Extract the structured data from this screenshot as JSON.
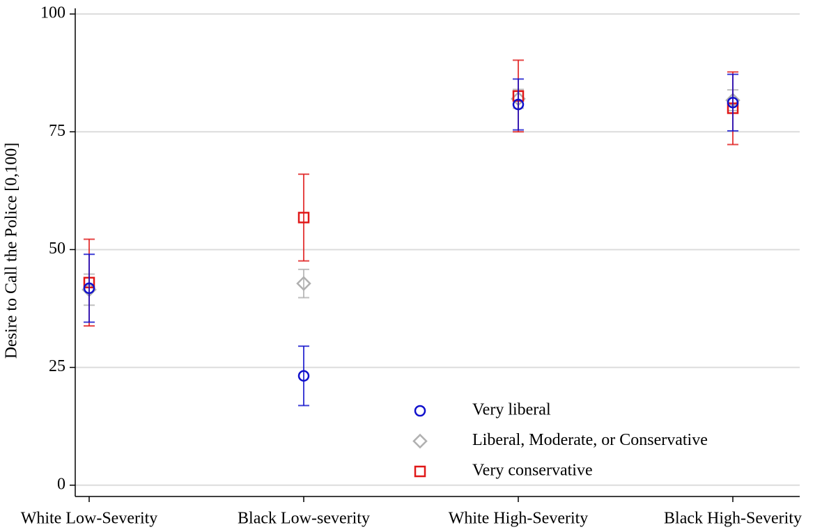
{
  "chart_data": {
    "type": "errorbar",
    "y_label": "Desire to Call the Police [0,100]",
    "categories": [
      "White Low-Severity",
      "Black Low-severity",
      "White High-Severity",
      "Black High-Severity"
    ],
    "ylim": [
      -2.4,
      101.2
    ],
    "yticks": [
      0,
      25,
      50,
      75,
      100
    ],
    "grid": true,
    "series": [
      {
        "name": "Very liberal",
        "color": "#1010cc",
        "marker": "circle",
        "values": [
          41.8,
          23.2,
          80.8,
          81.2
        ],
        "errors": [
          7.2,
          6.3,
          5.4,
          6.0
        ]
      },
      {
        "name": "Liberal, Moderate, or Conservative",
        "color": "#b0b0b0",
        "marker": "diamond",
        "values": [
          41.5,
          42.8,
          82.0,
          81.7
        ],
        "errors": [
          3.3,
          3.0,
          2.0,
          2.2
        ]
      },
      {
        "name": "Very conservative",
        "color": "#e01818",
        "marker": "square",
        "values": [
          43.0,
          56.8,
          82.6,
          80.0
        ],
        "errors": [
          9.2,
          9.2,
          7.6,
          7.7
        ]
      }
    ]
  }
}
